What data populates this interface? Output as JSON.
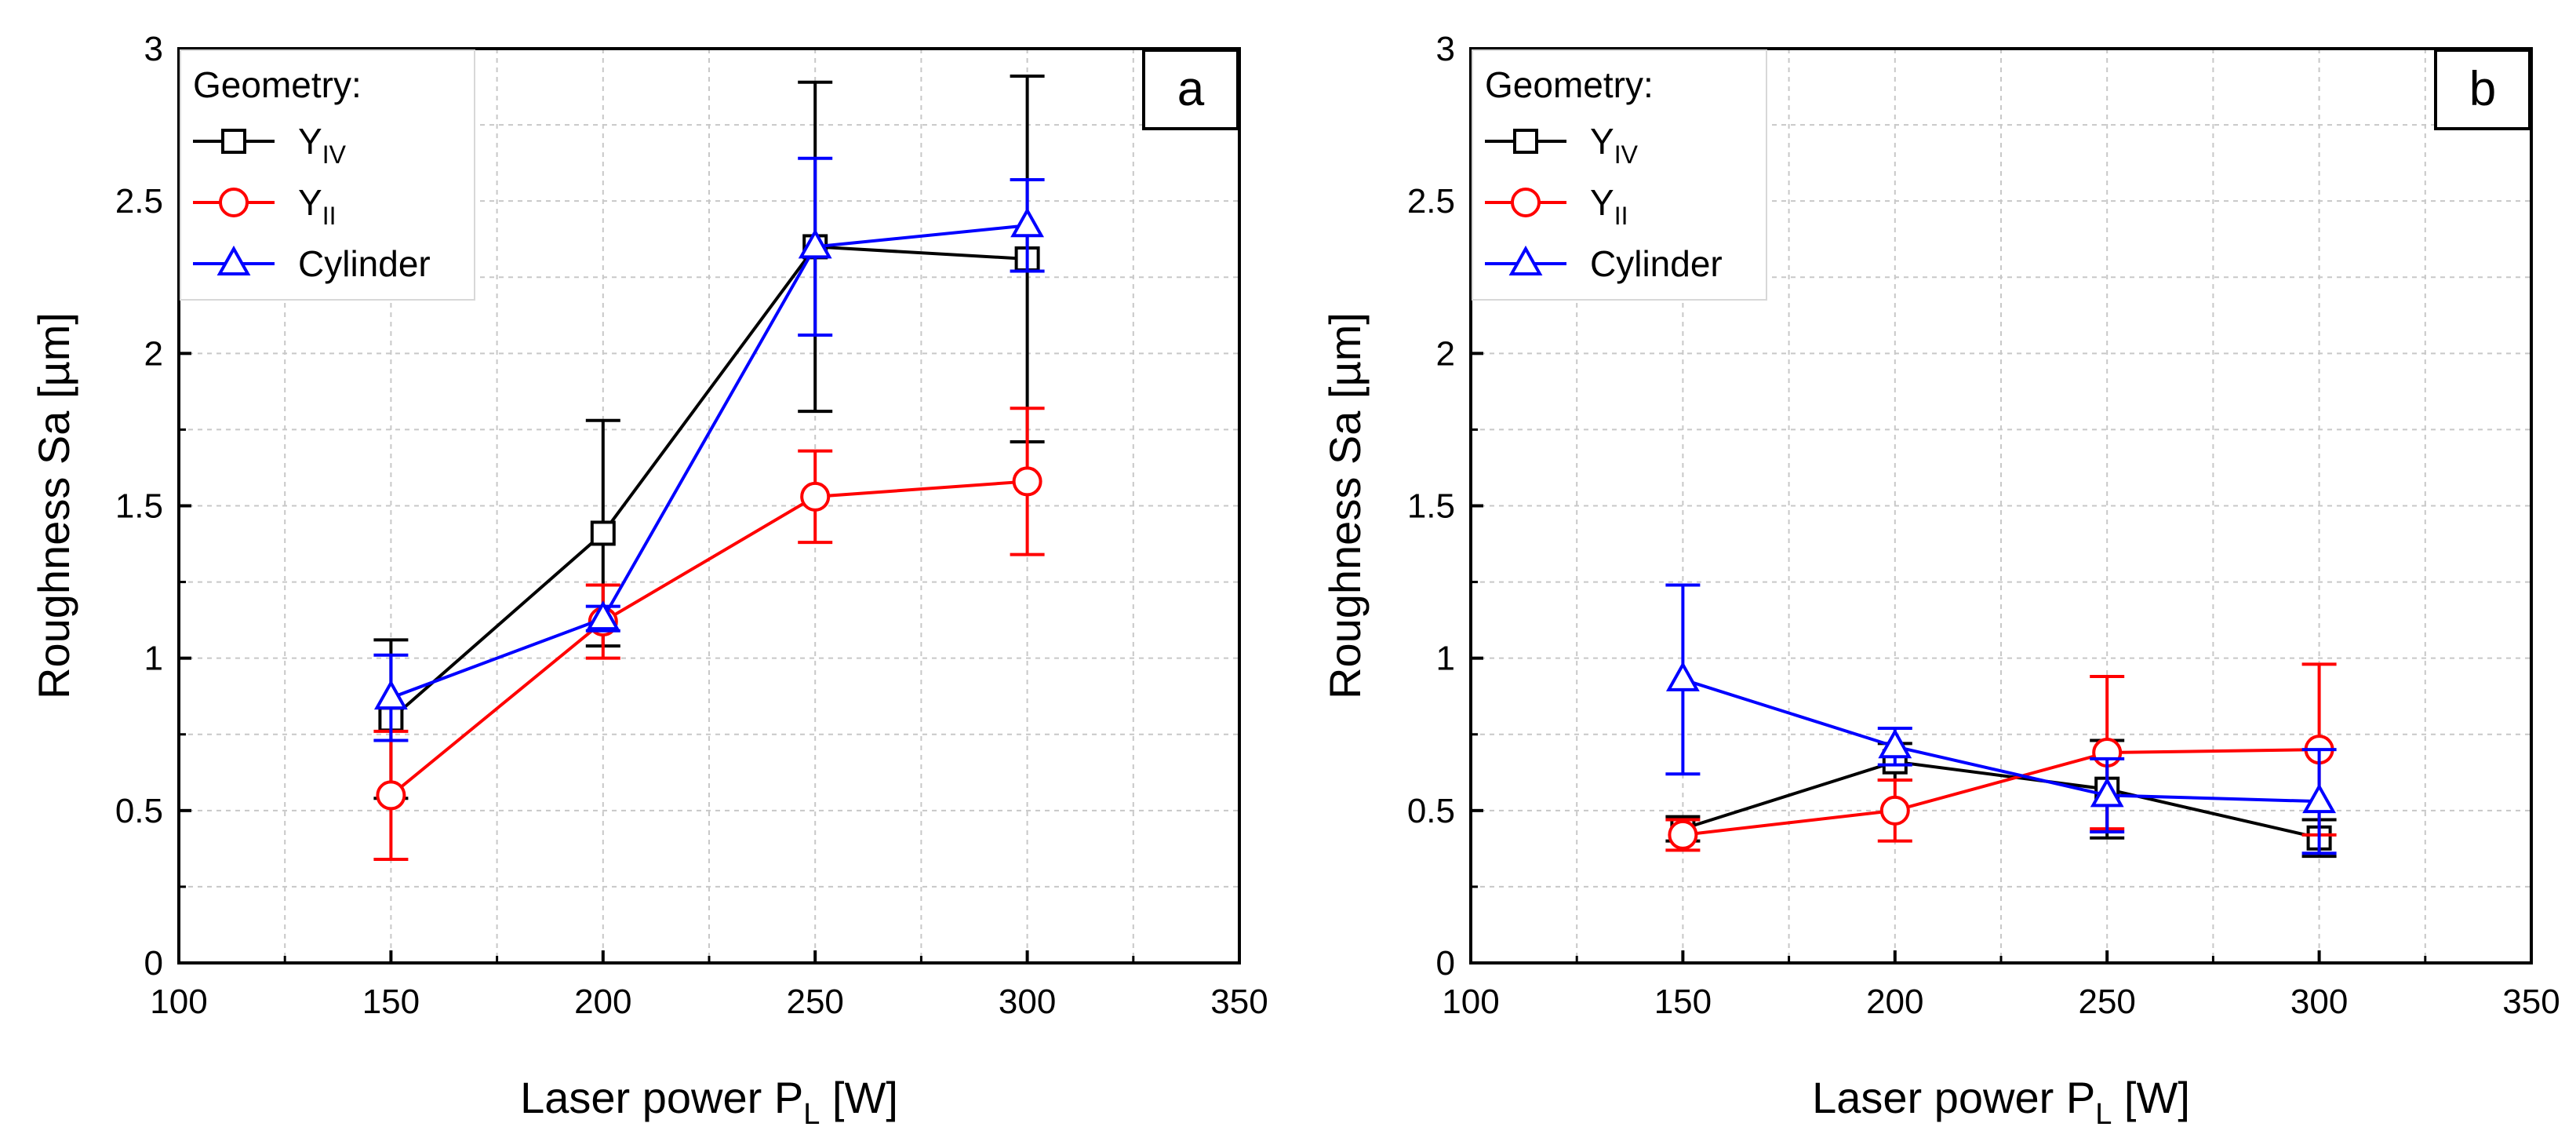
{
  "chart_data": [
    {
      "type": "line",
      "panel_label": "a",
      "xlabel": "Laser power P",
      "xlabel_sub": "L",
      "xlabel_unit": " [W]",
      "ylabel": "Roughness Sa [µm]",
      "xlim": [
        100,
        350
      ],
      "ylim": [
        0,
        3
      ],
      "xticks": [
        100,
        150,
        200,
        250,
        300,
        350
      ],
      "yticks": [
        0,
        0.5,
        1,
        1.5,
        2,
        2.5,
        3
      ],
      "xtick_labels": [
        "100",
        "150",
        "200",
        "250",
        "300",
        "350"
      ],
      "ytick_labels": [
        "0",
        "0.5",
        "1",
        "1.5",
        "2",
        "2.5",
        "3"
      ],
      "grid": true,
      "legend_title": "Geometry:",
      "legend_position": "top-left",
      "x": [
        150,
        200,
        250,
        300
      ],
      "series": [
        {
          "name": "Y",
          "name_sub": "IV",
          "color": "#000000",
          "marker": "square",
          "values": [
            0.8,
            1.41,
            2.35,
            2.31
          ],
          "errors": [
            0.26,
            0.37,
            0.54,
            0.6
          ]
        },
        {
          "name": "Y",
          "name_sub": "II",
          "color": "#ff0000",
          "marker": "circle",
          "values": [
            0.55,
            1.12,
            1.53,
            1.58
          ],
          "errors": [
            0.21,
            0.12,
            0.15,
            0.24
          ]
        },
        {
          "name": "Cylinder",
          "name_sub": "",
          "color": "#0000ff",
          "marker": "triangle",
          "values": [
            0.87,
            1.13,
            2.35,
            2.42
          ],
          "errors": [
            0.14,
            0.04,
            0.29,
            0.15
          ]
        }
      ]
    },
    {
      "type": "line",
      "panel_label": "b",
      "xlabel": "Laser power P",
      "xlabel_sub": "L",
      "xlabel_unit": " [W]",
      "ylabel": "Roughness Sa [µm]",
      "xlim": [
        100,
        350
      ],
      "ylim": [
        0,
        3
      ],
      "xticks": [
        100,
        150,
        200,
        250,
        300,
        350
      ],
      "yticks": [
        0,
        0.5,
        1,
        1.5,
        2,
        2.5,
        3
      ],
      "xtick_labels": [
        "100",
        "150",
        "200",
        "250",
        "300",
        "350"
      ],
      "ytick_labels": [
        "0",
        "0.5",
        "1",
        "1.5",
        "2",
        "2.5",
        "3"
      ],
      "grid": true,
      "legend_title": "Geometry:",
      "legend_position": "top-left",
      "x": [
        150,
        200,
        250,
        300
      ],
      "series": [
        {
          "name": "Y",
          "name_sub": "IV",
          "color": "#000000",
          "marker": "square",
          "values": [
            0.44,
            0.66,
            0.57,
            0.41
          ],
          "errors": [
            0.04,
            0.06,
            0.16,
            0.06
          ]
        },
        {
          "name": "Y",
          "name_sub": "II",
          "color": "#ff0000",
          "marker": "circle",
          "values": [
            0.42,
            0.5,
            0.69,
            0.7
          ],
          "errors": [
            0.05,
            0.1,
            0.25,
            0.28
          ]
        },
        {
          "name": "Cylinder",
          "name_sub": "",
          "color": "#0000ff",
          "marker": "triangle",
          "values": [
            0.93,
            0.71,
            0.55,
            0.53
          ],
          "errors": [
            0.31,
            0.06,
            0.12,
            0.17
          ]
        }
      ]
    }
  ]
}
